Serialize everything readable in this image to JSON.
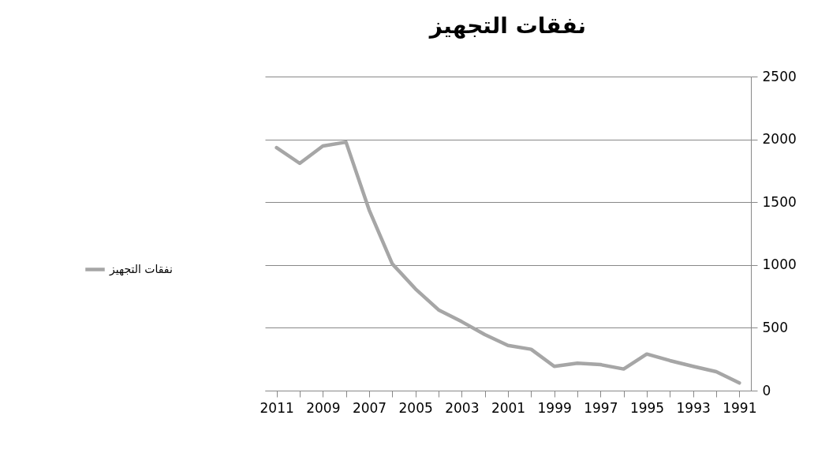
{
  "chart_data": {
    "type": "line",
    "title": "نفقات التجهيز",
    "categories": [
      "2011",
      null,
      "2009",
      null,
      "2007",
      null,
      "2005",
      null,
      "2003",
      null,
      "2001",
      null,
      "1999",
      null,
      "1997",
      null,
      "1995",
      null,
      "1993",
      null,
      "1991"
    ],
    "series": [
      {
        "name": "نفقات التجهيز",
        "color": "#a6a6a6",
        "values": [
          1934,
          1809,
          1947,
          1978,
          1438,
          1009,
          810,
          643,
          549,
          446,
          360,
          329,
          193,
          218,
          207,
          172,
          291,
          239,
          193,
          151,
          61
        ]
      }
    ],
    "ylim": [
      0,
      2500
    ],
    "yticks": [
      0,
      500,
      1000,
      1500,
      2000,
      2500
    ],
    "grid": "y",
    "legend": "left"
  }
}
